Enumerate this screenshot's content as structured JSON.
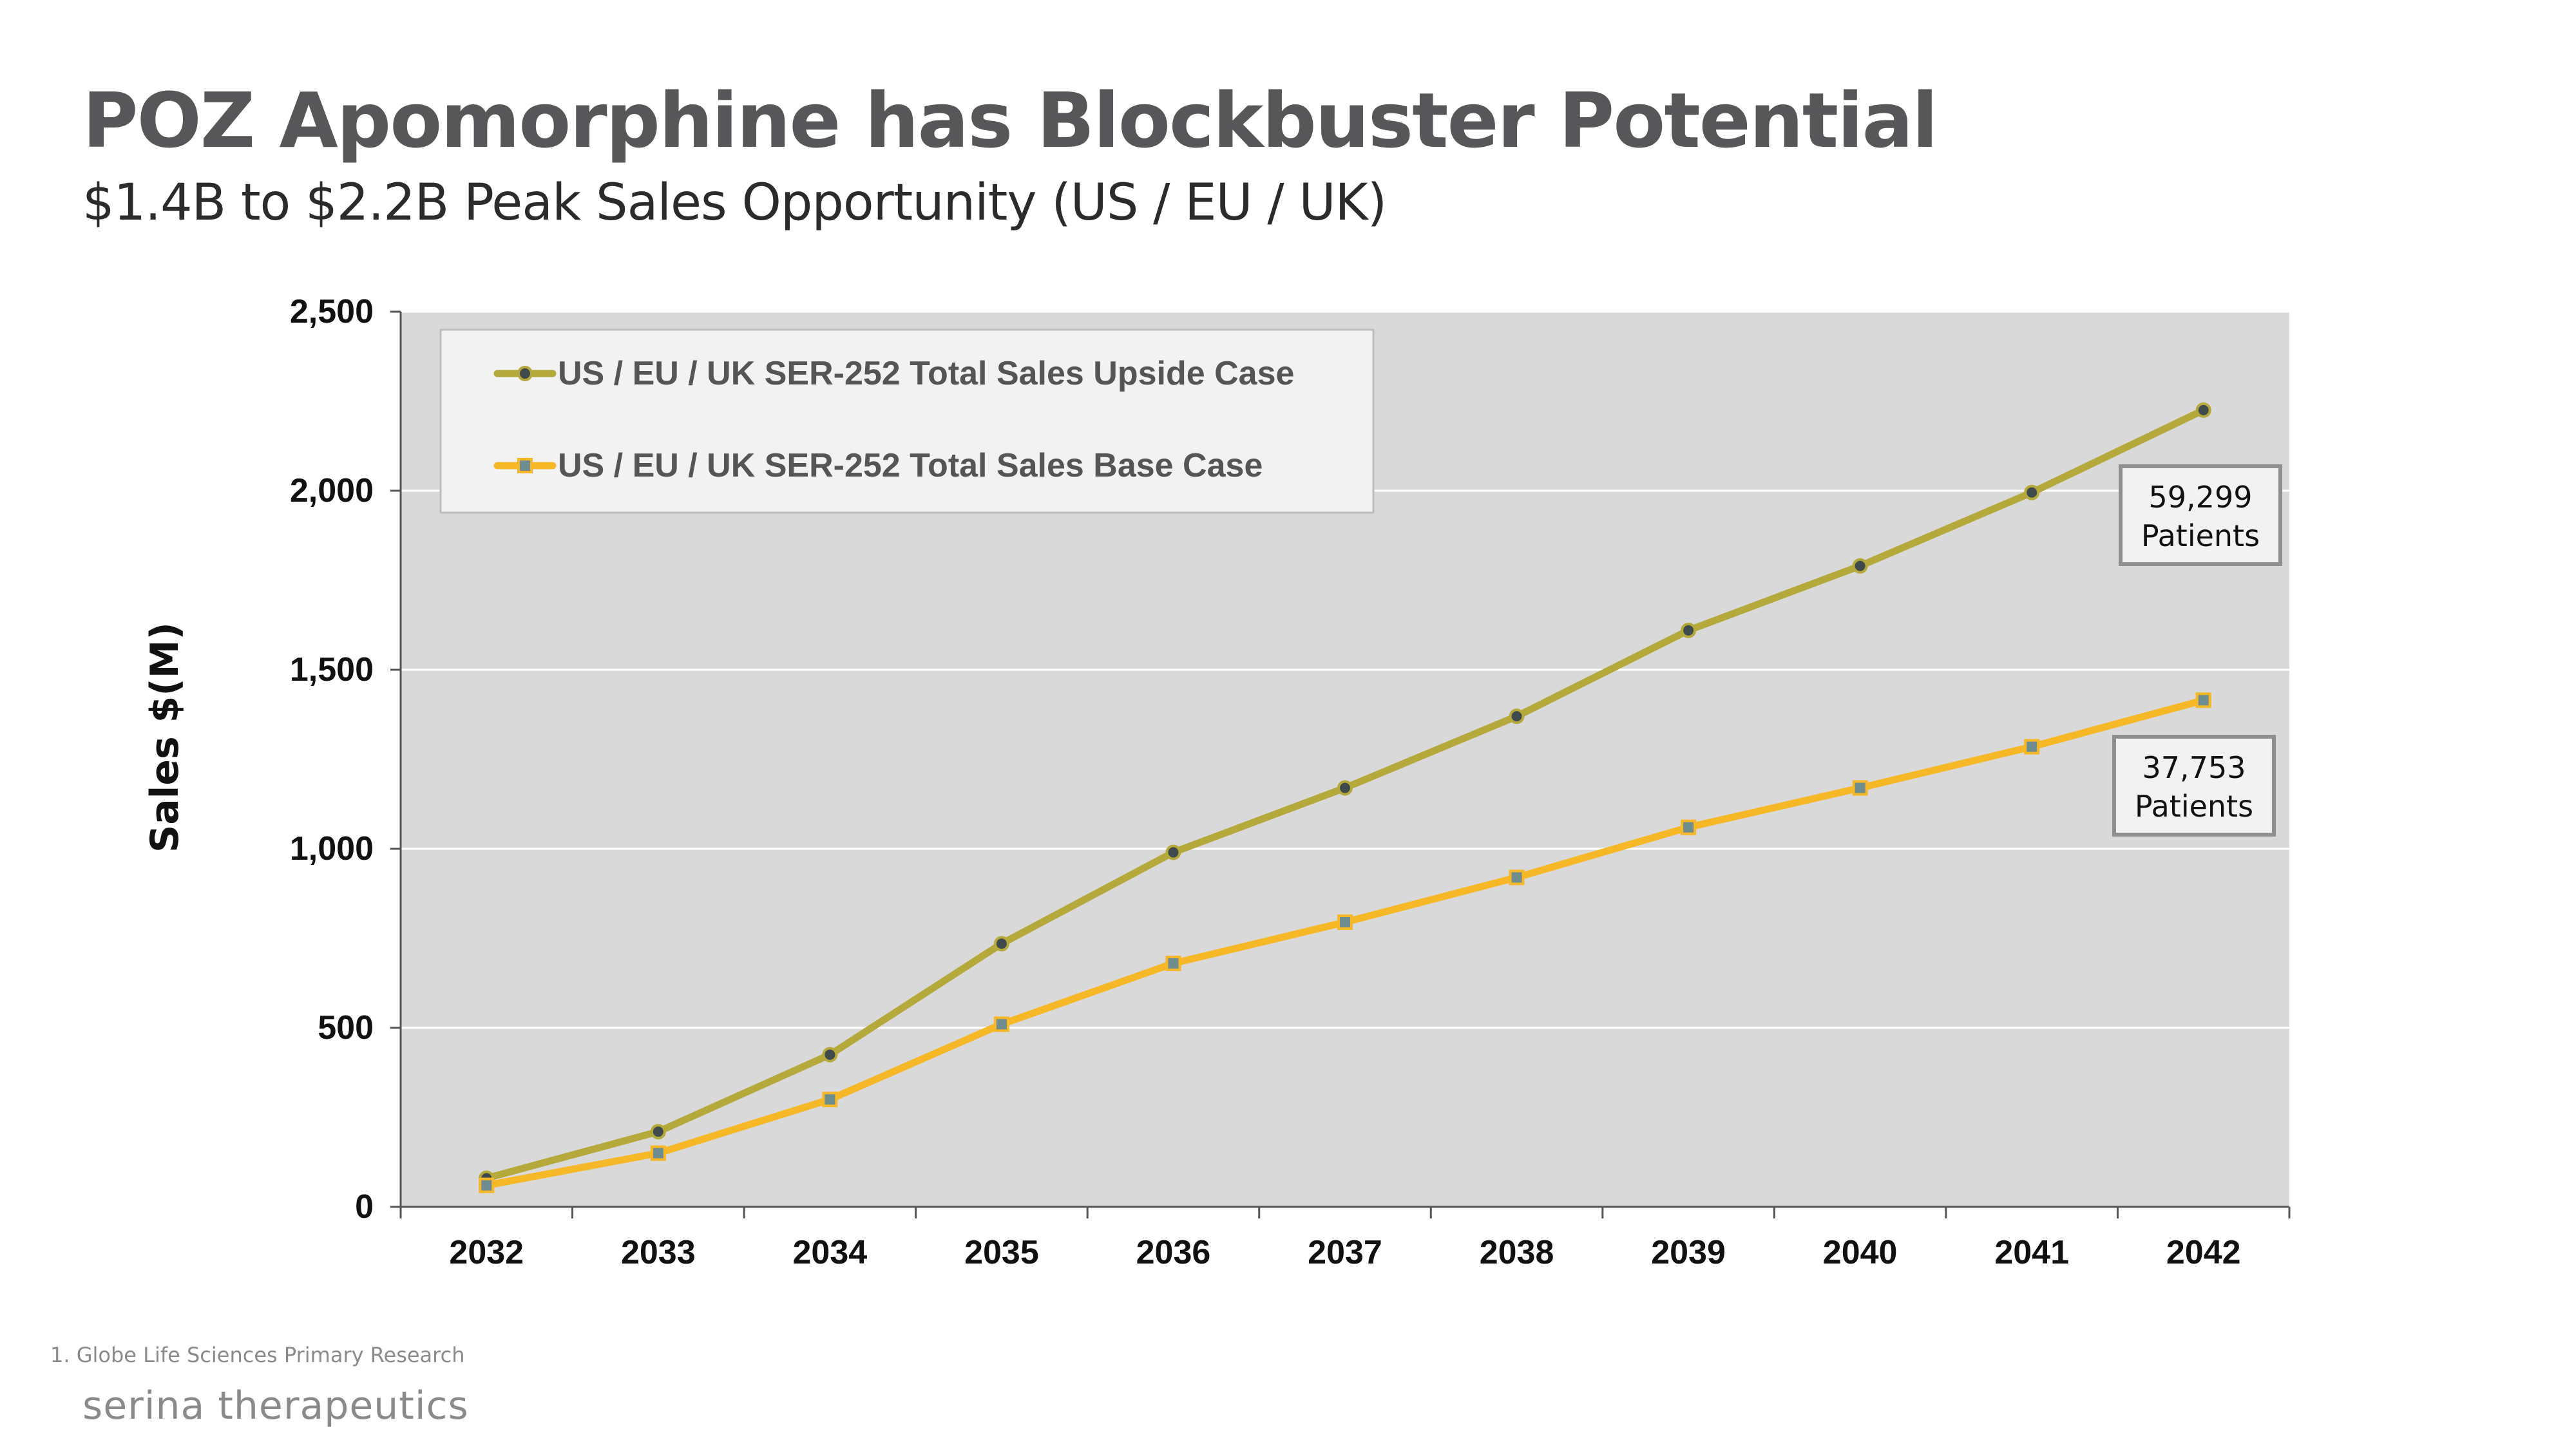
{
  "page": {
    "title": "POZ Apomorphine has Blockbuster Potential",
    "subtitle": "$1.4B to $2.2B Peak Sales Opportunity (US / EU / UK)",
    "footnote": "1.  Globe Life Sciences Primary Research",
    "logo": "serina therapeutics"
  },
  "chart_data": {
    "type": "line",
    "title": "",
    "xlabel": "",
    "ylabel": "Sales $(M)",
    "ylim": [
      0,
      2500
    ],
    "yticks": [
      0,
      500,
      1000,
      1500,
      2000,
      2500
    ],
    "ytick_labels": [
      "0",
      "500",
      "1,000",
      "1,500",
      "2,000",
      "2,500"
    ],
    "grid": true,
    "legend_position": "top-left",
    "categories": [
      "2032",
      "2033",
      "2034",
      "2035",
      "2036",
      "2037",
      "2038",
      "2039",
      "2040",
      "2041",
      "2042"
    ],
    "series": [
      {
        "name": "US / EU / UK SER-252 Total Sales Upside Case",
        "color": "#b5a93c",
        "marker": "circle",
        "values": [
          80,
          210,
          425,
          735,
          990,
          1170,
          1370,
          1610,
          1790,
          1995,
          2225
        ]
      },
      {
        "name": "US / EU / UK SER-252 Total Sales Base Case",
        "color": "#f6b827",
        "marker": "square",
        "values": [
          60,
          150,
          300,
          510,
          680,
          795,
          920,
          1060,
          1170,
          1285,
          1415
        ]
      }
    ],
    "annotations": [
      {
        "line1": "59,299",
        "line2": "Patients",
        "series": 0
      },
      {
        "line1": "37,753",
        "line2": "Patients",
        "series": 1
      }
    ]
  }
}
